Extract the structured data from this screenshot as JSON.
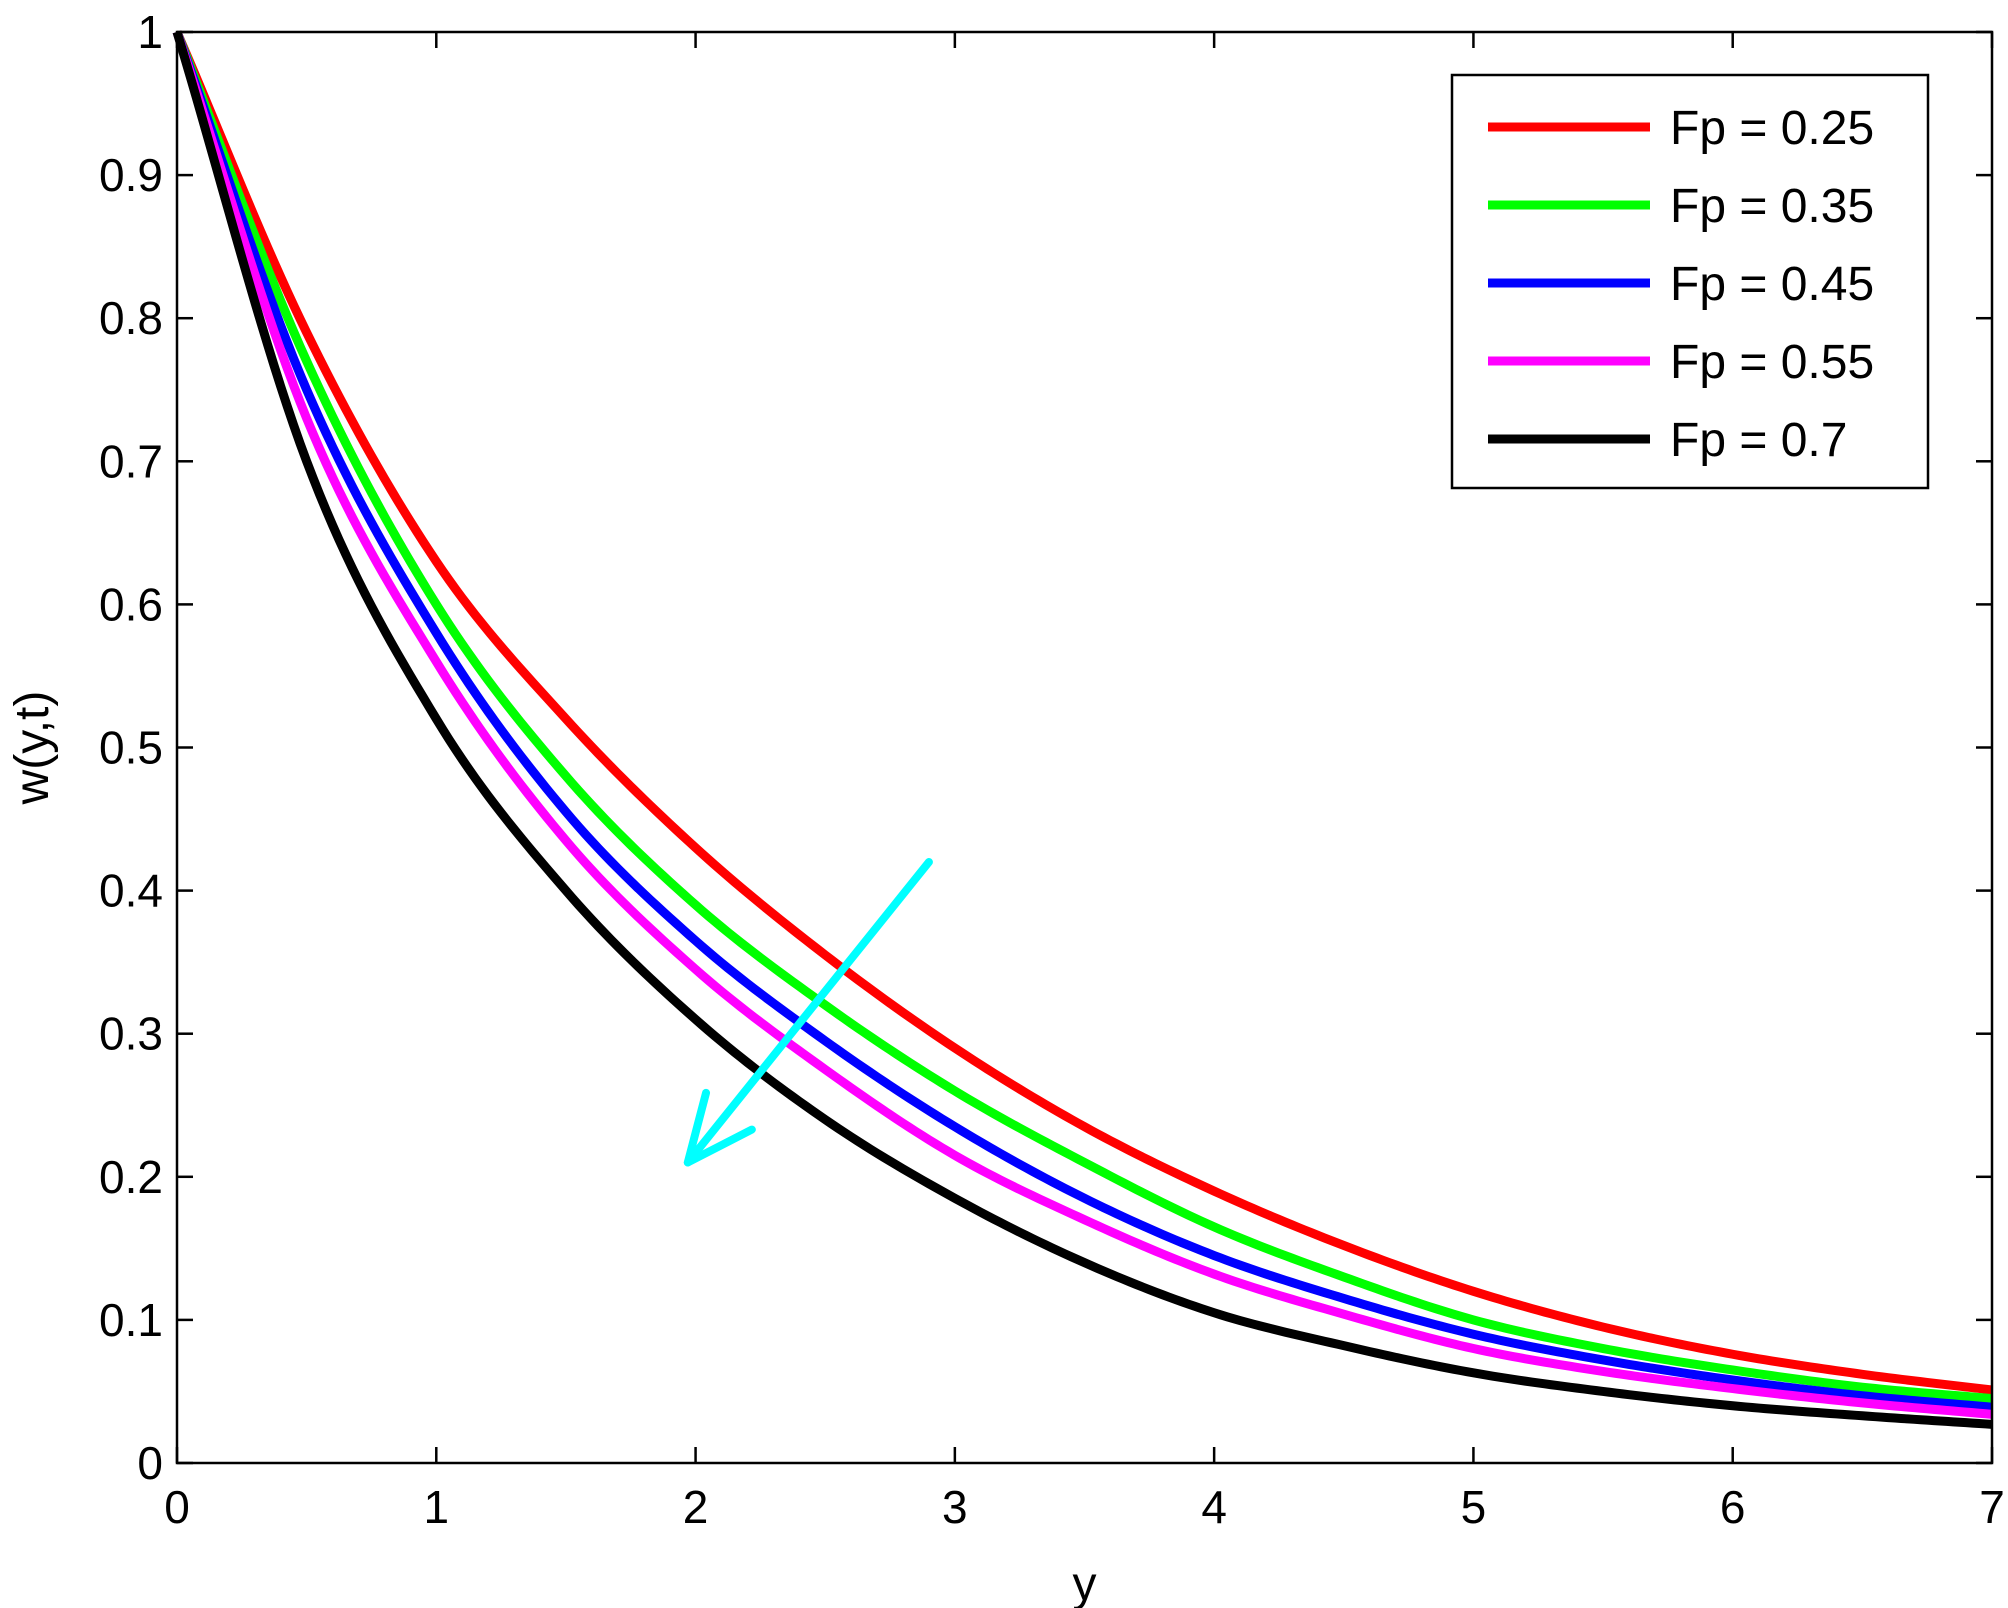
{
  "chart_data": {
    "type": "line",
    "title": "",
    "xlabel": "y",
    "ylabel": "w(y,t)",
    "xlim": [
      0,
      7
    ],
    "ylim": [
      0,
      1
    ],
    "xticks": [
      0,
      1,
      2,
      3,
      4,
      5,
      6,
      7
    ],
    "xtick_labels": [
      "0",
      "1",
      "2",
      "3",
      "4",
      "5",
      "6",
      "7"
    ],
    "yticks": [
      0,
      0.1,
      0.2,
      0.3,
      0.4,
      0.5,
      0.6,
      0.7,
      0.8,
      0.9,
      1
    ],
    "ytick_labels": [
      "0",
      "0.1",
      "0.2",
      "0.3",
      "0.4",
      "0.5",
      "0.6",
      "0.7",
      "0.8",
      "0.9",
      "1"
    ],
    "grid": false,
    "legend_position": "top-right",
    "x": [
      0,
      0.5,
      1,
      1.5,
      2,
      2.5,
      3,
      3.5,
      4,
      4.5,
      5,
      5.5,
      6,
      6.5,
      7
    ],
    "series": [
      {
        "name": "Fp = 0.25",
        "color": "#ff0000",
        "values": [
          1.0,
          0.79,
          0.63,
          0.52,
          0.43,
          0.355,
          0.29,
          0.235,
          0.19,
          0.152,
          0.12,
          0.095,
          0.076,
          0.062,
          0.051
        ]
      },
      {
        "name": "Fp = 0.35",
        "color": "#00ff00",
        "values": [
          1.0,
          0.77,
          0.6,
          0.48,
          0.39,
          0.32,
          0.26,
          0.21,
          0.165,
          0.13,
          0.1,
          0.08,
          0.065,
          0.053,
          0.045
        ]
      },
      {
        "name": "Fp = 0.45",
        "color": "#0000ff",
        "values": [
          1.0,
          0.75,
          0.58,
          0.455,
          0.365,
          0.295,
          0.235,
          0.185,
          0.145,
          0.115,
          0.09,
          0.072,
          0.058,
          0.047,
          0.039
        ]
      },
      {
        "name": "Fp = 0.55",
        "color": "#ff00ff",
        "values": [
          1.0,
          0.73,
          0.56,
          0.435,
          0.345,
          0.275,
          0.215,
          0.17,
          0.132,
          0.104,
          0.08,
          0.064,
          0.052,
          0.042,
          0.034
        ]
      },
      {
        "name": "Fp = 0.7",
        "color": "#000000",
        "values": [
          1.0,
          0.7,
          0.52,
          0.4,
          0.31,
          0.24,
          0.185,
          0.14,
          0.105,
          0.082,
          0.063,
          0.05,
          0.04,
          0.033,
          0.027
        ]
      }
    ],
    "annotation": {
      "type": "arrow",
      "color": "#00ffff",
      "from": [
        2.9,
        0.42
      ],
      "to": [
        1.97,
        0.21
      ]
    }
  }
}
